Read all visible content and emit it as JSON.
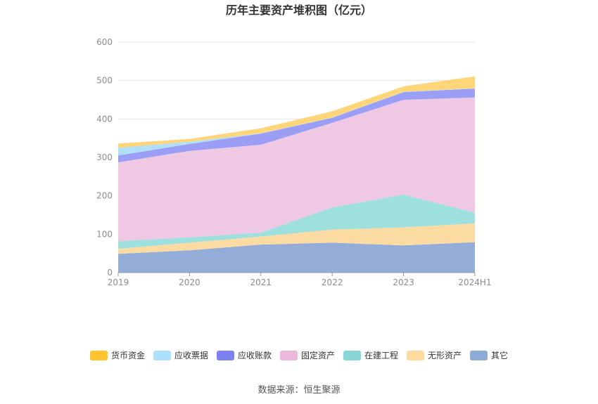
{
  "chart_data": {
    "type": "area",
    "stacked": true,
    "title": "历年主要资产堆积图（亿元）",
    "categories": [
      "2019",
      "2020",
      "2021",
      "2022",
      "2023",
      "2024H1"
    ],
    "ylim": [
      0,
      600
    ],
    "yticks": [
      0,
      100,
      200,
      300,
      400,
      500,
      600
    ],
    "grid": true,
    "legend_position": "bottom",
    "series": [
      {
        "name": "其它",
        "color": "#93acd8",
        "values": [
          49,
          58,
          73,
          78,
          71,
          79
        ]
      },
      {
        "name": "无形资产",
        "color": "#fcdba3",
        "values": [
          13,
          20,
          21,
          34,
          47,
          49
        ]
      },
      {
        "name": "在建工程",
        "color": "#9de0de",
        "values": [
          20,
          14,
          10,
          58,
          85,
          28
        ]
      },
      {
        "name": "固定资产",
        "color": "#efc8e4",
        "values": [
          205,
          225,
          229,
          220,
          247,
          300
        ]
      },
      {
        "name": "应收账款",
        "color": "#9a9ef5",
        "values": [
          18,
          18,
          29,
          13,
          20,
          23
        ]
      },
      {
        "name": "应收票据",
        "color": "#b0dff7",
        "values": [
          20,
          6,
          1,
          1,
          1,
          1
        ]
      },
      {
        "name": "货币资金",
        "color": "#ffd57a",
        "values": [
          11,
          7,
          13,
          16,
          14,
          31
        ]
      }
    ],
    "legend": [
      {
        "name": "货币资金",
        "color": "#fec32e"
      },
      {
        "name": "应收票据",
        "color": "#ade0fb"
      },
      {
        "name": "应收账款",
        "color": "#7b81f1"
      },
      {
        "name": "固定资产",
        "color": "#eab9da"
      },
      {
        "name": "在建工程",
        "color": "#86d7d4"
      },
      {
        "name": "无形资产",
        "color": "#fddb9f"
      },
      {
        "name": "其它",
        "color": "#8facd8"
      }
    ]
  },
  "source": "数据来源：恒生聚源"
}
